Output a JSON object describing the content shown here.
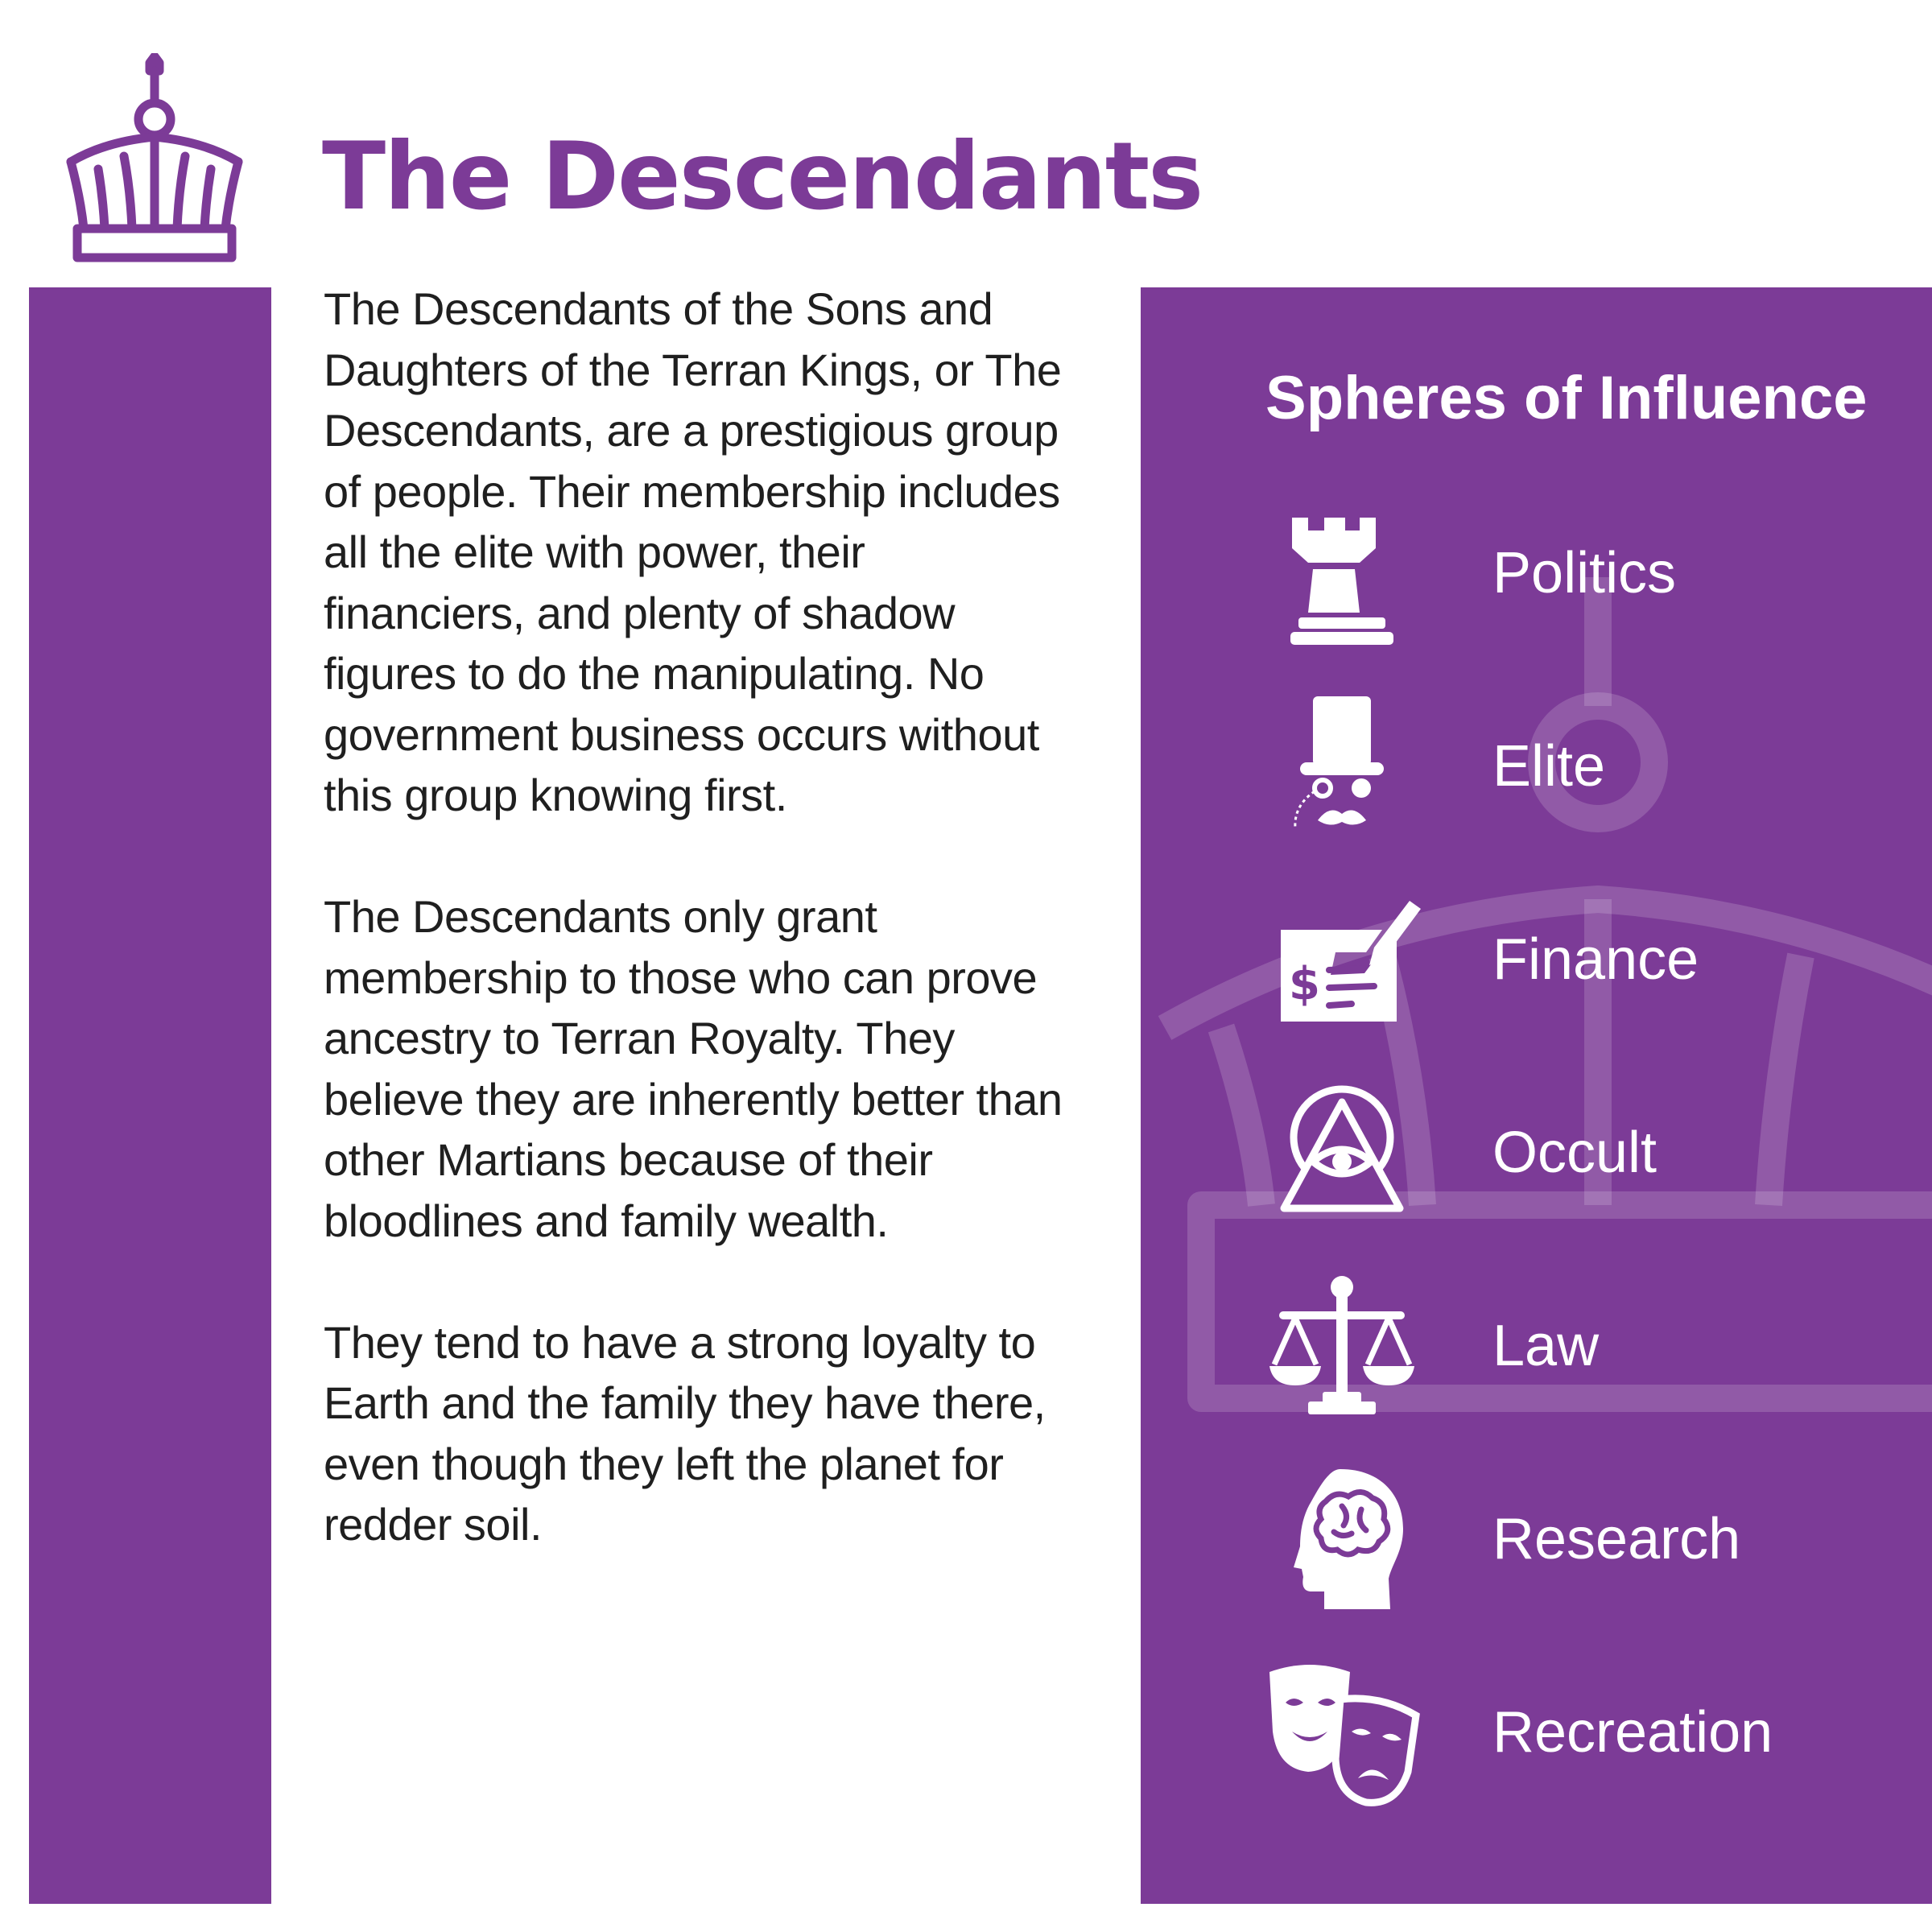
{
  "header": {
    "title": "The Descendants",
    "logo_icon": "crown-icon"
  },
  "description": {
    "paragraphs": [
      "The Descendants of the Sons and Daughters of the Terran Kings, or The Descendants, are a prestigious group of people. Their membership includes all the elite with power, their financiers, and plenty of shadow figures to do the manipulating. No government business occurs without this group knowing first.",
      "The Descendants only grant membership to those who can prove ancestry to Terran Royalty. They believe they are inherently better than other Martians because of their bloodlines and family wealth.",
      "They tend to have a strong loyalty to Earth and the family they have there, even though they left the planet for redder soil."
    ]
  },
  "spheres": {
    "title": "Spheres of Influence",
    "items": [
      {
        "label": "Politics",
        "icon": "chess-rook-icon"
      },
      {
        "label": "Elite",
        "icon": "top-hat-gentleman-icon"
      },
      {
        "label": "Finance",
        "icon": "check-signing-icon"
      },
      {
        "label": "Occult",
        "icon": "eye-pyramid-icon"
      },
      {
        "label": "Law",
        "icon": "scales-of-justice-icon"
      },
      {
        "label": "Research",
        "icon": "head-brain-icon"
      },
      {
        "label": "Recreation",
        "icon": "theater-masks-icon"
      }
    ]
  },
  "colors": {
    "accent": "#7c3b97",
    "text": "#1f1f1f",
    "panel_text": "#ffffff"
  }
}
